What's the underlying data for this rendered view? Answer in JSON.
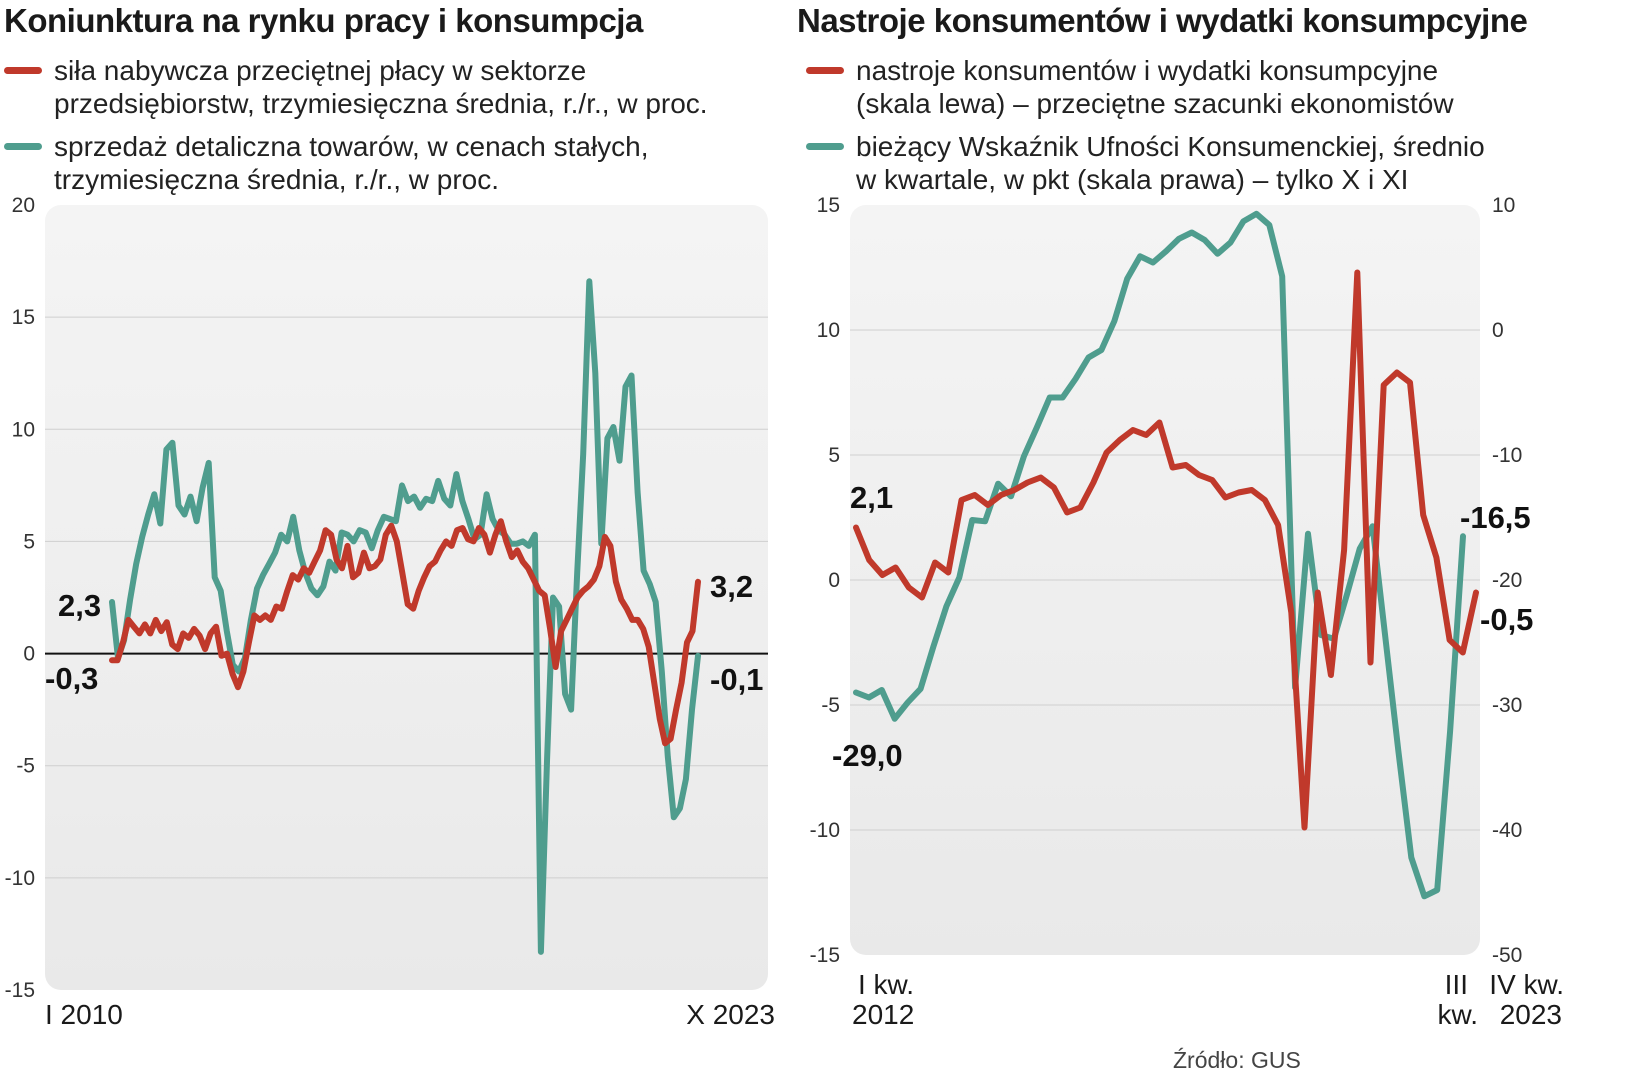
{
  "chart_data": [
    {
      "type": "line",
      "title": "Koniunktura na rynku pracy i konsumpcja",
      "ylim": [
        -15,
        20
      ],
      "yticks": [
        "20",
        "15",
        "10",
        "5",
        "0",
        "-5",
        "-10",
        "-15"
      ],
      "x_labels": [
        "I 2010",
        "X 2023"
      ],
      "grid": true,
      "legend": "top",
      "series": [
        {
          "name": [
            "siła nabywcza przeciętnej płacy w sektorze",
            "przedsiębiorstw, trzymiesięczna średnia, r./r., w proc."
          ],
          "color": "#c0392b",
          "values": [
            -0.3,
            -0.3,
            0.5,
            1.5,
            1.2,
            0.9,
            1.3,
            0.9,
            1.5,
            1.0,
            1.4,
            0.4,
            0.2,
            0.9,
            0.7,
            1.1,
            0.8,
            0.2,
            0.9,
            1.2,
            -0.1,
            0,
            -0.9,
            -1.5,
            -0.8,
            0.5,
            1.7,
            1.5,
            1.7,
            1.5,
            2.1,
            2.0,
            2.8,
            3.5,
            3.3,
            3.8,
            3.6,
            4.1,
            4.6,
            5.5,
            5.3,
            4.2,
            3.8,
            4.8,
            3.4,
            3.6,
            4.5,
            3.8,
            3.9,
            4.2,
            5.3,
            5.7,
            5.0,
            3.6,
            2.2,
            2.0,
            2.8,
            3.4,
            3.9,
            4.1,
            4.6,
            5.0,
            4.8,
            5.5,
            5.6,
            5.1,
            5.0,
            5.6,
            5.3,
            4.5,
            5.3,
            5.9,
            5.0,
            4.3,
            4.6,
            4.1,
            3.8,
            3.3,
            2.8,
            2.6,
            1.1,
            -0.6,
            1.0,
            1.5,
            2.0,
            2.5,
            2.8,
            3.0,
            3.3,
            3.9,
            5.2,
            4.8,
            3.2,
            2.4,
            2.0,
            1.5,
            1.5,
            1.1,
            0.3,
            -1.3,
            -2.9,
            -4.0,
            -3.8,
            -2.5,
            -1.3,
            0.5,
            1.0,
            3.2
          ]
        },
        {
          "name": [
            "sprzedaż detaliczna towarów, w cenach stałych,",
            "trzymiesięczna średnia, r./r., w proc."
          ],
          "color": "#4f9d8e",
          "values": [
            2.3,
            -0.2,
            0.6,
            2.4,
            4.0,
            5.2,
            6.2,
            7.1,
            5.8,
            9.1,
            9.4,
            6.6,
            6.2,
            7.0,
            5.9,
            7.4,
            8.5,
            3.4,
            2.8,
            1.0,
            -0.5,
            -0.8,
            -0.2,
            1.5,
            2.9,
            3.5,
            4.0,
            4.5,
            5.3,
            5.0,
            6.1,
            4.6,
            3.6,
            2.9,
            2.6,
            3.0,
            4.1,
            3.7,
            5.4,
            5.3,
            5.0,
            5.5,
            5.4,
            4.7,
            5.5,
            6.1,
            6.0,
            5.9,
            7.5,
            6.8,
            7.0,
            6.5,
            6.9,
            6.8,
            7.7,
            6.9,
            6.6,
            8.0,
            6.8,
            6.0,
            5.1,
            5.3,
            7.1,
            6.0,
            5.5,
            5.3,
            4.9,
            4.9,
            5.0,
            4.8,
            5.3,
            -13.3,
            -4.8,
            2.5,
            2.1,
            -1.8,
            -2.5,
            3.6,
            8.9,
            16.6,
            12.5,
            4.9,
            9.6,
            10.1,
            8.6,
            11.9,
            12.4,
            7.2,
            3.7,
            3.1,
            2.3,
            -0.8,
            -4.6,
            -7.3,
            -6.9,
            -5.6,
            -2.5,
            -0.1
          ]
        }
      ],
      "annotations": [
        "2,3",
        "-0,3",
        "3,2",
        "-0,1"
      ]
    },
    {
      "type": "line",
      "title": "Nastroje konsumentów i wydatki konsumpcyjne",
      "ylim_left": [
        -15,
        15
      ],
      "ylim_right": [
        -50,
        10
      ],
      "yticks_left": [
        "15",
        "10",
        "5",
        "0",
        "-5",
        "-10",
        "-15"
      ],
      "yticks_right": [
        "10",
        "0",
        "-10",
        "-20",
        "-30",
        "-40",
        "-50"
      ],
      "x_labels": [
        [
          "I kw.",
          "2012"
        ],
        [
          "III",
          "kw."
        ],
        [
          "IV kw.",
          "2023"
        ]
      ],
      "grid": true,
      "legend": "top",
      "series": [
        {
          "name": [
            "nastroje konsumentów i wydatki konsumpcyjne",
            "(skala lewa) – przeciętne szacunki ekonomistów"
          ],
          "color": "#c0392b",
          "axis": "left",
          "values": [
            2.1,
            0.8,
            0.2,
            0.5,
            -0.3,
            -0.7,
            0.7,
            0.3,
            3.2,
            3.4,
            3.0,
            3.4,
            3.6,
            3.9,
            4.1,
            3.7,
            2.7,
            2.9,
            3.9,
            5.1,
            5.6,
            6.0,
            5.8,
            6.3,
            4.5,
            4.6,
            4.2,
            4.0,
            3.3,
            3.5,
            3.6,
            3.2,
            2.2,
            -1.3,
            -9.9,
            -0.5,
            -3.8,
            1.2,
            12.3,
            -3.3,
            7.8,
            8.3,
            7.9,
            2.6,
            0.9,
            -2.4,
            -2.9,
            -0.5
          ]
        },
        {
          "name": [
            "bieżący Wskaźnik Ufności Konsumenckiej, średnio",
            "w kwartale, w pkt (skala prawa) – tylko X i XI"
          ],
          "color": "#4f9d8e",
          "axis": "right",
          "values": [
            -29.0,
            -29.4,
            -28.8,
            -31.1,
            -29.8,
            -28.7,
            -25.3,
            -22.1,
            -19.8,
            -15.2,
            -15.3,
            -12.3,
            -13.3,
            -10.1,
            -7.8,
            -5.4,
            -5.4,
            -3.9,
            -2.2,
            -1.6,
            0.7,
            4.1,
            5.9,
            5.4,
            6.3,
            7.3,
            7.8,
            7.2,
            6.1,
            7.0,
            8.7,
            9.3,
            8.4,
            4.3,
            -28.6,
            -16.3,
            -24.4,
            -24.7,
            -21.2,
            -17.5,
            -15.7,
            -24.7,
            -33.7,
            -42.2,
            -45.3,
            -44.8,
            -32.1,
            -16.5
          ]
        }
      ],
      "annotations": [
        "2,1",
        "-29,0",
        "-16,5",
        "-0,5"
      ]
    }
  ],
  "source": "Źródło: GUS"
}
